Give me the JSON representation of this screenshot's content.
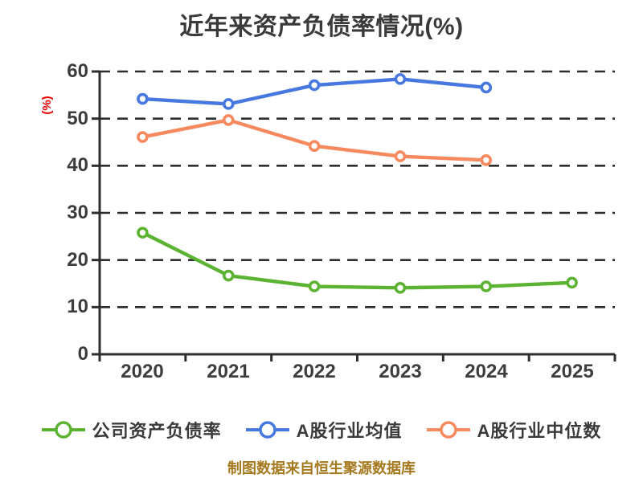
{
  "title": "近年来资产负债率情况(%)",
  "footer": "制图数据来自恒生聚源数据库",
  "chart_data": {
    "type": "line",
    "title": "近年来资产负债率情况(%)",
    "ylabel": "(%)",
    "ylabel_color": "#e60000",
    "categories": [
      "2020",
      "2021",
      "2022",
      "2023",
      "2024",
      "2025"
    ],
    "yticks": [
      0,
      10,
      20,
      30,
      40,
      50,
      60
    ],
    "ylim": [
      0,
      60
    ],
    "grid": "horizontal-dashed",
    "grid_color": "#2e2e2e",
    "axis_color": "#2e2e2e",
    "text_color": "#3d3d3d",
    "legend_position": "bottom",
    "series": [
      {
        "name": "公司资产负债率",
        "color": "#5bb331",
        "values": [
          25.8,
          16.7,
          14.4,
          14.1,
          14.4,
          15.2
        ]
      },
      {
        "name": "A股行业均值",
        "color": "#4678df",
        "values": [
          54.2,
          53.1,
          57.1,
          58.4,
          56.6,
          null
        ]
      },
      {
        "name": "A股行业中位数",
        "color": "#f7895f",
        "values": [
          46.1,
          49.7,
          44.2,
          42.0,
          41.2,
          null
        ]
      }
    ]
  }
}
